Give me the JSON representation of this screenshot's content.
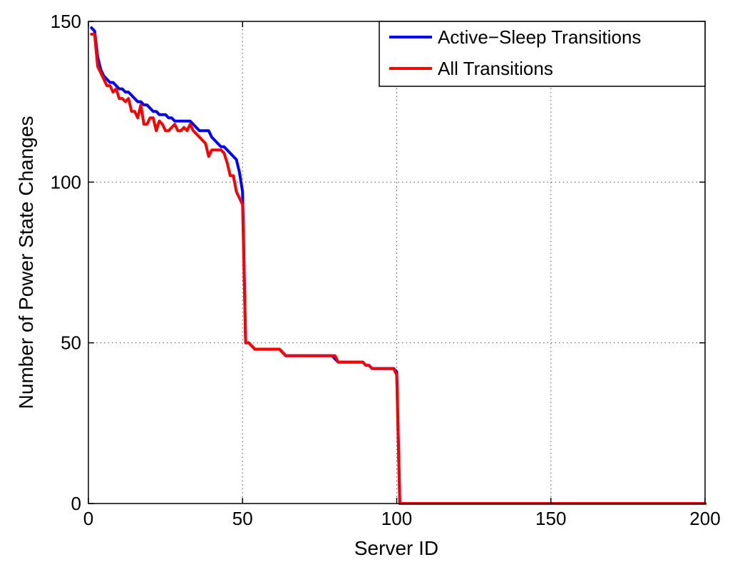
{
  "chart_data": {
    "type": "line",
    "title": "",
    "xlabel": "Server ID",
    "ylabel": "Number of Power State Changes",
    "xlim": [
      0,
      200
    ],
    "ylim": [
      0,
      150
    ],
    "xticks": [
      0,
      50,
      100,
      150,
      200
    ],
    "yticks": [
      0,
      50,
      100,
      150
    ],
    "xtick_labels": [
      "0",
      "50",
      "100",
      "150",
      "200"
    ],
    "ytick_labels": [
      "0",
      "50",
      "100",
      "150"
    ],
    "grid": true,
    "legend_position": "top-right",
    "series": [
      {
        "name": "Active−Sleep Transitions",
        "color": "#0000ff",
        "x": [
          1,
          2,
          3,
          4,
          5,
          6,
          7,
          8,
          9,
          10,
          11,
          12,
          13,
          14,
          15,
          16,
          17,
          18,
          19,
          20,
          21,
          22,
          23,
          24,
          25,
          26,
          27,
          28,
          29,
          30,
          31,
          32,
          33,
          34,
          35,
          36,
          37,
          38,
          39,
          40,
          41,
          42,
          43,
          44,
          45,
          46,
          47,
          48,
          49,
          50,
          51,
          52,
          53,
          54,
          55,
          56,
          57,
          58,
          59,
          60,
          61,
          62,
          63,
          64,
          65,
          66,
          67,
          68,
          69,
          70,
          71,
          72,
          73,
          74,
          75,
          76,
          77,
          78,
          79,
          80,
          81,
          82,
          83,
          84,
          85,
          86,
          87,
          88,
          89,
          90,
          91,
          92,
          93,
          94,
          95,
          96,
          97,
          98,
          99,
          100,
          101,
          102,
          103,
          104,
          105,
          106,
          107,
          108,
          109,
          110,
          111,
          112,
          113,
          114,
          115,
          116,
          117,
          118,
          119,
          120,
          121,
          122,
          123,
          124,
          125,
          126,
          127,
          128,
          129,
          130,
          131,
          132,
          133,
          134,
          135,
          136,
          137,
          138,
          139,
          140,
          141,
          142,
          143,
          144,
          145,
          146,
          147,
          148,
          149,
          150,
          151,
          152,
          153,
          154,
          155,
          156,
          157,
          158,
          159,
          160,
          161,
          162,
          163,
          164,
          165,
          166,
          167,
          168,
          169,
          170,
          171,
          172,
          173,
          174,
          175,
          176,
          177,
          178,
          179,
          180,
          181,
          182,
          183,
          184,
          185,
          186,
          187,
          188,
          189,
          190,
          191,
          192,
          193,
          194,
          195,
          196,
          197,
          198,
          199,
          200
        ],
        "y": [
          148,
          147,
          139,
          135,
          133,
          132,
          131,
          131,
          130,
          129,
          129,
          128,
          128,
          127,
          126,
          125,
          125,
          124,
          124,
          123,
          122,
          122,
          121,
          121,
          121,
          120,
          120,
          119,
          119,
          119,
          119,
          119,
          119,
          118,
          117,
          116,
          116,
          116,
          116,
          114,
          113,
          112,
          111,
          111,
          110,
          109,
          108,
          107,
          103,
          97,
          50,
          50,
          49,
          48,
          48,
          48,
          48,
          48,
          48,
          48,
          48,
          48,
          47,
          46,
          46,
          46,
          46,
          46,
          46,
          46,
          46,
          46,
          46,
          46,
          46,
          46,
          46,
          46,
          46,
          45,
          44,
          44,
          44,
          44,
          44,
          44,
          44,
          44,
          44,
          43,
          43,
          42,
          42,
          42,
          42,
          42,
          42,
          42,
          42,
          41,
          0,
          0,
          0,
          0,
          0,
          0,
          0,
          0,
          0,
          0,
          0,
          0,
          0,
          0,
          0,
          0,
          0,
          0,
          0,
          0,
          0,
          0,
          0,
          0,
          0,
          0,
          0,
          0,
          0,
          0,
          0,
          0,
          0,
          0,
          0,
          0,
          0,
          0,
          0,
          0,
          0,
          0,
          0,
          0,
          0,
          0,
          0,
          0,
          0,
          0,
          0,
          0,
          0,
          0,
          0,
          0,
          0,
          0,
          0,
          0,
          0,
          0,
          0,
          0,
          0,
          0,
          0,
          0,
          0,
          0,
          0,
          0,
          0,
          0,
          0,
          0,
          0,
          0,
          0,
          0,
          0,
          0,
          0,
          0,
          0,
          0,
          0,
          0,
          0,
          0,
          0,
          0,
          0,
          0,
          0,
          0,
          0,
          0,
          0,
          0
        ]
      },
      {
        "name": "All Transitions",
        "color": "#ff0000",
        "x": [
          1,
          2,
          3,
          4,
          5,
          6,
          7,
          8,
          9,
          10,
          11,
          12,
          13,
          14,
          15,
          16,
          17,
          18,
          19,
          20,
          21,
          22,
          23,
          24,
          25,
          26,
          27,
          28,
          29,
          30,
          31,
          32,
          33,
          34,
          35,
          36,
          37,
          38,
          39,
          40,
          41,
          42,
          43,
          44,
          45,
          46,
          47,
          48,
          49,
          50,
          51,
          52,
          53,
          54,
          55,
          56,
          57,
          58,
          59,
          60,
          61,
          62,
          63,
          64,
          65,
          66,
          67,
          68,
          69,
          70,
          71,
          72,
          73,
          74,
          75,
          76,
          77,
          78,
          79,
          80,
          81,
          82,
          83,
          84,
          85,
          86,
          87,
          88,
          89,
          90,
          91,
          92,
          93,
          94,
          95,
          96,
          97,
          98,
          99,
          100,
          101,
          102,
          103,
          104,
          105,
          106,
          107,
          108,
          109,
          110,
          111,
          112,
          113,
          114,
          115,
          116,
          117,
          118,
          119,
          120,
          121,
          122,
          123,
          124,
          125,
          126,
          127,
          128,
          129,
          130,
          131,
          132,
          133,
          134,
          135,
          136,
          137,
          138,
          139,
          140,
          141,
          142,
          143,
          144,
          145,
          146,
          147,
          148,
          149,
          150,
          151,
          152,
          153,
          154,
          155,
          156,
          157,
          158,
          159,
          160,
          161,
          162,
          163,
          164,
          165,
          166,
          167,
          168,
          169,
          170,
          171,
          172,
          173,
          174,
          175,
          176,
          177,
          178,
          179,
          180,
          181,
          182,
          183,
          184,
          185,
          186,
          187,
          188,
          189,
          190,
          191,
          192,
          193,
          194,
          195,
          196,
          197,
          198,
          199,
          200
        ],
        "y": [
          146,
          146,
          136,
          134,
          132,
          130,
          130,
          128,
          129,
          126,
          126,
          125,
          126,
          122,
          122,
          120,
          124,
          118,
          118,
          120,
          120,
          116,
          119,
          118,
          116,
          116,
          117,
          118,
          116,
          116,
          117,
          116,
          118,
          116,
          115,
          114,
          113,
          112,
          108,
          110,
          110,
          110,
          110,
          109,
          106,
          102,
          102,
          97,
          95,
          93,
          50,
          50,
          49,
          48,
          48,
          48,
          48,
          48,
          48,
          48,
          48,
          48,
          47,
          46,
          46,
          46,
          46,
          46,
          46,
          46,
          46,
          46,
          46,
          46,
          46,
          46,
          46,
          46,
          46,
          46,
          44,
          44,
          44,
          44,
          44,
          44,
          44,
          44,
          44,
          43,
          43,
          42,
          42,
          42,
          42,
          42,
          42,
          42,
          42,
          40,
          0,
          0,
          0,
          0,
          0,
          0,
          0,
          0,
          0,
          0,
          0,
          0,
          0,
          0,
          0,
          0,
          0,
          0,
          0,
          0,
          0,
          0,
          0,
          0,
          0,
          0,
          0,
          0,
          0,
          0,
          0,
          0,
          0,
          0,
          0,
          0,
          0,
          0,
          0,
          0,
          0,
          0,
          0,
          0,
          0,
          0,
          0,
          0,
          0,
          0,
          0,
          0,
          0,
          0,
          0,
          0,
          0,
          0,
          0,
          0,
          0,
          0,
          0,
          0,
          0,
          0,
          0,
          0,
          0,
          0,
          0,
          0,
          0,
          0,
          0,
          0,
          0,
          0,
          0,
          0,
          0,
          0,
          0,
          0,
          0,
          0,
          0,
          0,
          0,
          0,
          0,
          0,
          0,
          0,
          0,
          0,
          0,
          0,
          0,
          0
        ]
      }
    ]
  }
}
